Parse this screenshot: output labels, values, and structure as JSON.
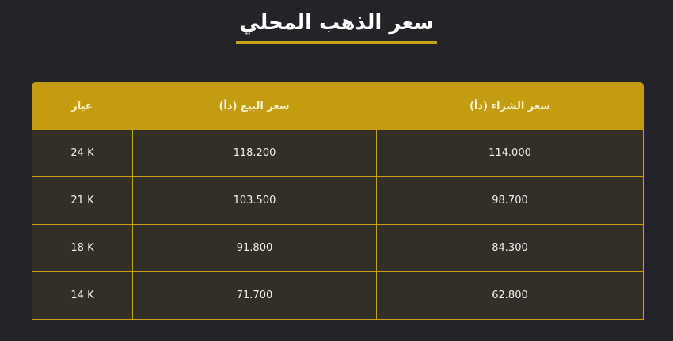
{
  "title": "سعر الذهب المحلي",
  "colors": {
    "accent": "#c49c10",
    "background": "#232428",
    "row": "#332f26"
  },
  "table": {
    "headers": {
      "karat": "عيار",
      "sell": "سعر البيع (دأ)",
      "buy": "سعر الشراء (دأ)"
    },
    "rows": [
      {
        "karat": "24 K",
        "sell": "118.200",
        "buy": "114.000"
      },
      {
        "karat": "21 K",
        "sell": "103.500",
        "buy": "98.700"
      },
      {
        "karat": "18 K",
        "sell": "91.800",
        "buy": "84.300"
      },
      {
        "karat": "14 K",
        "sell": "71.700",
        "buy": "62.800"
      }
    ]
  }
}
